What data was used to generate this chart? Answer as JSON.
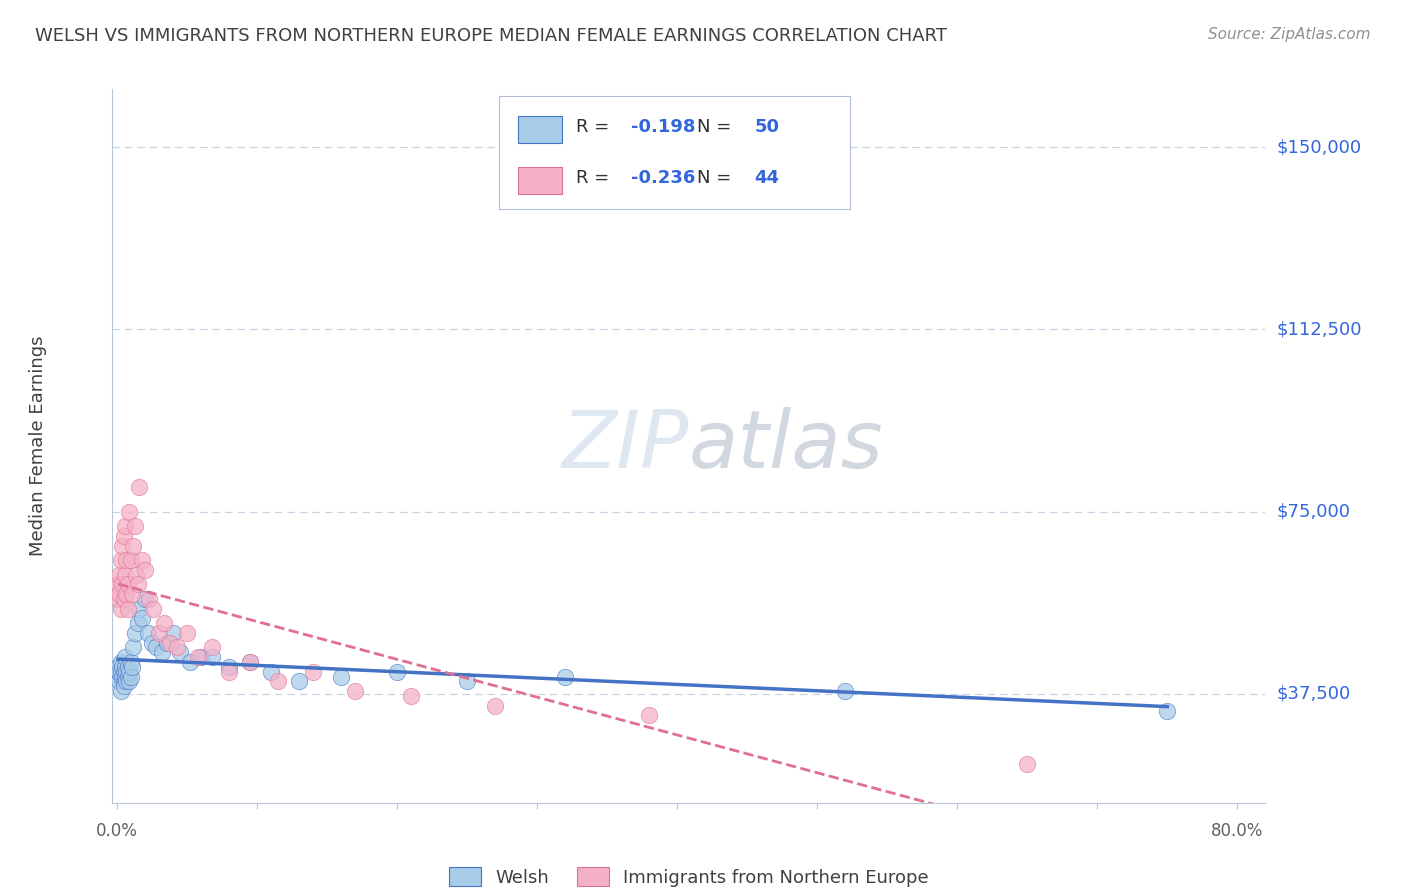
{
  "title": "WELSH VS IMMIGRANTS FROM NORTHERN EUROPE MEDIAN FEMALE EARNINGS CORRELATION CHART",
  "source": "Source: ZipAtlas.com",
  "ylabel": "Median Female Earnings",
  "ytick_labels": [
    "$37,500",
    "$75,000",
    "$112,500",
    "$150,000"
  ],
  "ytick_values": [
    37500,
    75000,
    112500,
    150000
  ],
  "ymin": 15000,
  "ymax": 162000,
  "xmin": -0.003,
  "xmax": 0.82,
  "welsh_R": -0.198,
  "welsh_N": 50,
  "immigrant_R": -0.236,
  "immigrant_N": 44,
  "welsh_scatter_color": "#a8cce8",
  "welsh_line_color": "#4472c4",
  "immigrant_scatter_color": "#f4b0c8",
  "immigrant_line_color": "#e07090",
  "background_color": "#ffffff",
  "grid_color": "#c8d4e4",
  "title_color": "#404040",
  "source_color": "#909090",
  "value_color": "#3366dd",
  "watermark_color": "#ccd8e8",
  "welsh_x": [
    0.001,
    0.001,
    0.002,
    0.002,
    0.003,
    0.003,
    0.003,
    0.004,
    0.004,
    0.005,
    0.005,
    0.005,
    0.006,
    0.006,
    0.006,
    0.007,
    0.007,
    0.008,
    0.008,
    0.009,
    0.009,
    0.01,
    0.01,
    0.011,
    0.012,
    0.013,
    0.015,
    0.016,
    0.018,
    0.02,
    0.022,
    0.025,
    0.028,
    0.032,
    0.036,
    0.04,
    0.045,
    0.052,
    0.06,
    0.068,
    0.08,
    0.095,
    0.11,
    0.13,
    0.16,
    0.2,
    0.25,
    0.32,
    0.52,
    0.75
  ],
  "welsh_y": [
    41000,
    43000,
    40000,
    42000,
    38000,
    42000,
    44000,
    41000,
    43000,
    40000,
    42000,
    39000,
    43000,
    45000,
    41000,
    42000,
    40000,
    41000,
    43000,
    40000,
    42000,
    44000,
    41000,
    43000,
    47000,
    50000,
    52000,
    55000,
    53000,
    57000,
    50000,
    48000,
    47000,
    46000,
    48000,
    50000,
    46000,
    44000,
    45000,
    45000,
    43000,
    44000,
    42000,
    40000,
    41000,
    42000,
    40000,
    41000,
    38000,
    34000
  ],
  "immigrant_x": [
    0.001,
    0.001,
    0.002,
    0.002,
    0.003,
    0.003,
    0.004,
    0.004,
    0.005,
    0.005,
    0.006,
    0.006,
    0.007,
    0.007,
    0.008,
    0.008,
    0.009,
    0.01,
    0.011,
    0.012,
    0.013,
    0.014,
    0.015,
    0.016,
    0.018,
    0.02,
    0.023,
    0.026,
    0.03,
    0.034,
    0.038,
    0.043,
    0.05,
    0.058,
    0.068,
    0.08,
    0.095,
    0.115,
    0.14,
    0.17,
    0.21,
    0.27,
    0.38,
    0.65
  ],
  "immigrant_y": [
    57000,
    60000,
    58000,
    62000,
    55000,
    65000,
    60000,
    68000,
    57000,
    70000,
    62000,
    72000,
    65000,
    58000,
    55000,
    60000,
    75000,
    65000,
    58000,
    68000,
    72000,
    62000,
    60000,
    80000,
    65000,
    63000,
    57000,
    55000,
    50000,
    52000,
    48000,
    47000,
    50000,
    45000,
    47000,
    42000,
    44000,
    40000,
    42000,
    38000,
    37000,
    35000,
    33000,
    23000
  ]
}
